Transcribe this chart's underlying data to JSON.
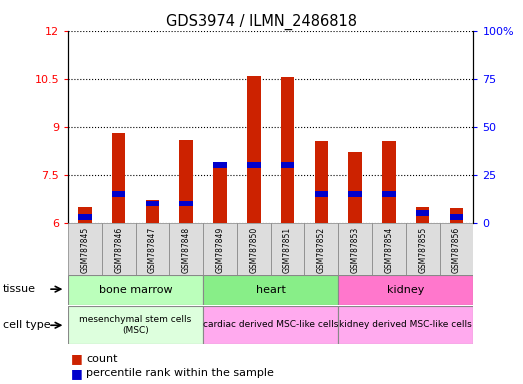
{
  "title": "GDS3974 / ILMN_2486818",
  "samples": [
    "GSM787845",
    "GSM787846",
    "GSM787847",
    "GSM787848",
    "GSM787849",
    "GSM787850",
    "GSM787851",
    "GSM787852",
    "GSM787853",
    "GSM787854",
    "GSM787855",
    "GSM787856"
  ],
  "count_values": [
    6.5,
    8.8,
    6.7,
    8.6,
    7.9,
    10.6,
    10.55,
    8.55,
    8.2,
    8.55,
    6.5,
    6.45
  ],
  "percentile_values": [
    3,
    15,
    10,
    10,
    30,
    30,
    30,
    15,
    15,
    15,
    5,
    3
  ],
  "ylim_left": [
    6,
    12
  ],
  "ylim_right": [
    0,
    100
  ],
  "yticks_left": [
    6,
    7.5,
    9,
    10.5,
    12
  ],
  "yticks_right": [
    0,
    25,
    50,
    75,
    100
  ],
  "ytick_right_labels": [
    "0",
    "25",
    "50",
    "75",
    "100%"
  ],
  "bar_color": "#cc2200",
  "percentile_color": "#0000cc",
  "tissue_groups": [
    {
      "label": "bone marrow",
      "start": 0,
      "end": 3,
      "color": "#bbffbb"
    },
    {
      "label": "heart",
      "start": 4,
      "end": 7,
      "color": "#88ee88"
    },
    {
      "label": "kidney",
      "start": 8,
      "end": 11,
      "color": "#ff77cc"
    }
  ],
  "cell_type_groups": [
    {
      "label": "mesenchymal stem cells\n(MSC)",
      "start": 0,
      "end": 3,
      "color": "#ddffdd"
    },
    {
      "label": "cardiac derived MSC-like cells",
      "start": 4,
      "end": 7,
      "color": "#ffaaee"
    },
    {
      "label": "kidney derived MSC-like cells",
      "start": 8,
      "end": 11,
      "color": "#ffaaee"
    }
  ],
  "legend_count_label": "count",
  "legend_percentile_label": "percentile rank within the sample",
  "tissue_label": "tissue",
  "cell_type_label": "cell type",
  "bar_width": 0.4
}
